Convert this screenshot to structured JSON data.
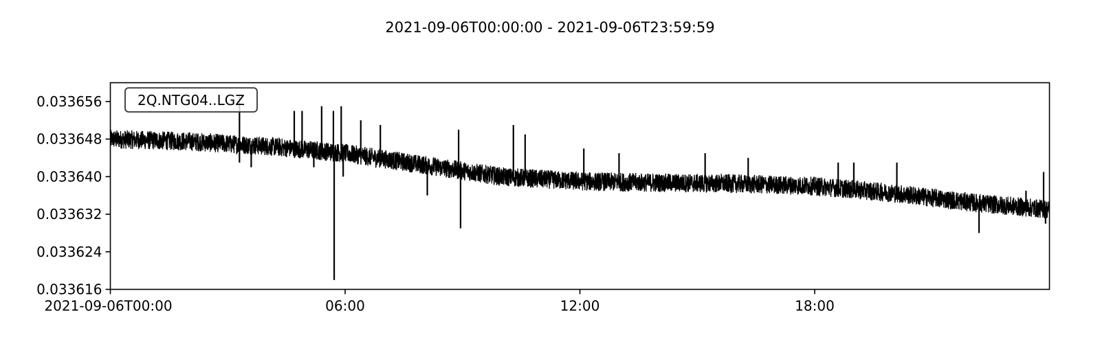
{
  "chart_data": {
    "type": "line",
    "title": "2021-09-06T00:00:00  -  2021-09-06T23:59:59",
    "xlabel": "",
    "ylabel": "",
    "x_start": "2021-09-06T00:00:00",
    "x_end": "2021-09-06T23:59:59",
    "x_ticks": [
      {
        "label": "2021-09-06T00:00",
        "hour": 0
      },
      {
        "label": "06:00",
        "hour": 6
      },
      {
        "label": "12:00",
        "hour": 12
      },
      {
        "label": "18:00",
        "hour": 18
      }
    ],
    "y_ticks": [
      0.033616,
      0.033624,
      0.033632,
      0.03364,
      0.033648,
      0.033656
    ],
    "ylim": [
      0.033616,
      0.03366
    ],
    "xlim_hours": [
      0,
      24
    ],
    "legend_placement": "top-left",
    "grid": false,
    "series": [
      {
        "name": "2Q.NTG04..LGZ",
        "color": "#000000",
        "trend": {
          "hours": [
            0,
            2,
            4,
            6,
            8,
            10,
            12,
            14,
            16,
            18,
            20,
            22,
            24
          ],
          "values": [
            0.033648,
            0.0336475,
            0.0336465,
            0.033645,
            0.0336425,
            0.03364,
            0.033639,
            0.0336387,
            0.0336385,
            0.033638,
            0.0336365,
            0.0336345,
            0.033633
          ]
        },
        "noise_amplitude": 2e-06,
        "spikes": [
          {
            "hour": 3.3,
            "value": 0.033657
          },
          {
            "hour": 3.3,
            "value": 0.033643
          },
          {
            "hour": 3.6,
            "value": 0.033642
          },
          {
            "hour": 4.7,
            "value": 0.033654
          },
          {
            "hour": 4.9,
            "value": 0.033654
          },
          {
            "hour": 5.2,
            "value": 0.033642
          },
          {
            "hour": 5.4,
            "value": 0.033655
          },
          {
            "hour": 5.7,
            "value": 0.033654
          },
          {
            "hour": 5.72,
            "value": 0.033618
          },
          {
            "hour": 5.9,
            "value": 0.033655
          },
          {
            "hour": 5.95,
            "value": 0.03364
          },
          {
            "hour": 6.4,
            "value": 0.033652
          },
          {
            "hour": 6.9,
            "value": 0.033651
          },
          {
            "hour": 8.9,
            "value": 0.03365
          },
          {
            "hour": 8.95,
            "value": 0.033629
          },
          {
            "hour": 8.1,
            "value": 0.033636
          },
          {
            "hour": 10.3,
            "value": 0.033651
          },
          {
            "hour": 10.6,
            "value": 0.033649
          },
          {
            "hour": 12.1,
            "value": 0.033646
          },
          {
            "hour": 13.0,
            "value": 0.033645
          },
          {
            "hour": 15.2,
            "value": 0.033645
          },
          {
            "hour": 16.3,
            "value": 0.033644
          },
          {
            "hour": 18.6,
            "value": 0.033643
          },
          {
            "hour": 19.0,
            "value": 0.033643
          },
          {
            "hour": 20.1,
            "value": 0.033643
          },
          {
            "hour": 22.2,
            "value": 0.033628
          },
          {
            "hour": 23.4,
            "value": 0.033637
          },
          {
            "hour": 23.85,
            "value": 0.033641
          },
          {
            "hour": 23.9,
            "value": 0.03363
          }
        ]
      }
    ]
  }
}
